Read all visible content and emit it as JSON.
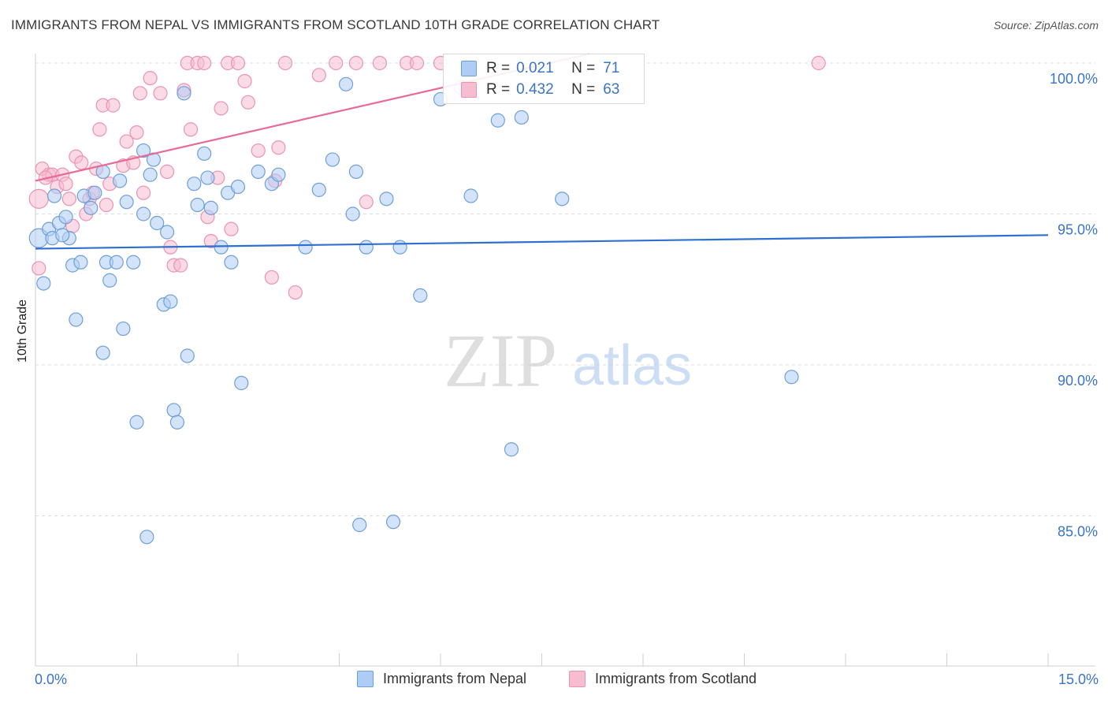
{
  "title": "IMMIGRANTS FROM NEPAL VS IMMIGRANTS FROM SCOTLAND 10TH GRADE CORRELATION CHART",
  "source": "Source: ZipAtlas.com",
  "watermark": {
    "zip": "ZIP",
    "atlas": "atlas"
  },
  "legend": {
    "nepal": {
      "r_label": "R =",
      "r_value": "0.021",
      "n_label": "N =",
      "n_value": "71"
    },
    "scotland": {
      "r_label": "R =",
      "r_value": "0.432",
      "n_label": "N =",
      "n_value": "63"
    }
  },
  "bottom_legend": {
    "nepal": "Immigrants from Nepal",
    "scotland": "Immigrants from Scotland"
  },
  "colors": {
    "nepal_fill": "#aecdf5",
    "nepal_stroke": "#6f9fd8",
    "nepal_line": "#2f6fcf",
    "scotland_fill": "#f6bcd0",
    "scotland_stroke": "#eb93b3",
    "scotland_line": "#e86a96",
    "tick_text": "#3a74c9",
    "grid": "#dcdcdc"
  },
  "chart_data": {
    "type": "scatter",
    "title": "IMMIGRANTS FROM NEPAL VS IMMIGRANTS FROM SCOTLAND 10TH GRADE CORRELATION CHART",
    "xlabel": "",
    "ylabel": "10th Grade",
    "xlim": [
      0,
      15
    ],
    "ylim": [
      80,
      100.8
    ],
    "x_tick_labels": [
      "0.0%",
      "15.0%"
    ],
    "y_ticks": [
      85,
      90,
      95,
      100
    ],
    "y_tick_labels": [
      "85.0%",
      "90.0%",
      "95.0%",
      "100.0%"
    ],
    "grid": true,
    "legend_position": "top-center",
    "series": [
      {
        "name": "Immigrants from Nepal",
        "R": 0.021,
        "N": 71,
        "trend": {
          "x": [
            0,
            15
          ],
          "y": [
            93.85,
            94.3
          ]
        },
        "points": [
          [
            0.05,
            94.2
          ],
          [
            0.12,
            92.7
          ],
          [
            0.2,
            94.5
          ],
          [
            0.25,
            94.2
          ],
          [
            0.28,
            95.6
          ],
          [
            0.35,
            94.7
          ],
          [
            0.45,
            94.9
          ],
          [
            0.5,
            94.2
          ],
          [
            0.55,
            93.3
          ],
          [
            0.6,
            91.5
          ],
          [
            0.67,
            93.4
          ],
          [
            0.72,
            95.6
          ],
          [
            0.82,
            95.2
          ],
          [
            0.88,
            95.7
          ],
          [
            1.0,
            96.4
          ],
          [
            1.0,
            90.4
          ],
          [
            1.05,
            93.4
          ],
          [
            1.1,
            92.8
          ],
          [
            1.2,
            93.4
          ],
          [
            1.25,
            96.1
          ],
          [
            1.3,
            91.2
          ],
          [
            1.35,
            95.4
          ],
          [
            1.45,
            93.4
          ],
          [
            1.5,
            88.1
          ],
          [
            1.6,
            97.1
          ],
          [
            1.65,
            84.3
          ],
          [
            1.7,
            96.3
          ],
          [
            1.75,
            96.8
          ],
          [
            1.8,
            94.7
          ],
          [
            1.9,
            92.0
          ],
          [
            1.95,
            94.4
          ],
          [
            2.0,
            92.1
          ],
          [
            2.05,
            88.5
          ],
          [
            2.1,
            88.1
          ],
          [
            2.2,
            99.0
          ],
          [
            2.25,
            90.3
          ],
          [
            2.35,
            96.0
          ],
          [
            2.4,
            95.3
          ],
          [
            2.5,
            97.0
          ],
          [
            2.55,
            96.2
          ],
          [
            2.6,
            95.2
          ],
          [
            2.75,
            93.9
          ],
          [
            2.85,
            95.7
          ],
          [
            2.9,
            93.4
          ],
          [
            3.0,
            95.9
          ],
          [
            3.05,
            89.4
          ],
          [
            3.3,
            96.4
          ],
          [
            3.5,
            96.0
          ],
          [
            3.6,
            96.3
          ],
          [
            4.0,
            93.9
          ],
          [
            4.2,
            95.8
          ],
          [
            4.4,
            96.8
          ],
          [
            4.6,
            99.3
          ],
          [
            4.7,
            95.0
          ],
          [
            4.75,
            96.4
          ],
          [
            4.8,
            84.7
          ],
          [
            4.9,
            93.9
          ],
          [
            5.2,
            95.5
          ],
          [
            5.3,
            84.8
          ],
          [
            5.4,
            93.9
          ],
          [
            5.7,
            92.3
          ],
          [
            6.0,
            98.8
          ],
          [
            6.45,
            95.6
          ],
          [
            6.85,
            98.1
          ],
          [
            7.05,
            87.2
          ],
          [
            7.2,
            98.2
          ],
          [
            7.8,
            95.5
          ],
          [
            11.2,
            89.6
          ],
          [
            6.3,
            99.2
          ],
          [
            1.6,
            95.0
          ],
          [
            0.4,
            94.3
          ]
        ]
      },
      {
        "name": "Immigrants from Scotland",
        "R": 0.432,
        "N": 63,
        "trend": {
          "x": [
            0,
            8.2
          ],
          "y": [
            96.1,
            100.3
          ]
        },
        "points": [
          [
            0.05,
            95.5
          ],
          [
            0.05,
            93.2
          ],
          [
            0.1,
            96.5
          ],
          [
            0.2,
            96.3
          ],
          [
            0.25,
            96.3
          ],
          [
            0.32,
            95.9
          ],
          [
            0.4,
            96.3
          ],
          [
            0.45,
            96.0
          ],
          [
            0.5,
            95.5
          ],
          [
            0.55,
            94.6
          ],
          [
            0.6,
            96.9
          ],
          [
            0.68,
            96.7
          ],
          [
            0.75,
            95.0
          ],
          [
            0.8,
            95.5
          ],
          [
            0.85,
            95.7
          ],
          [
            0.9,
            96.5
          ],
          [
            0.95,
            97.8
          ],
          [
            1.0,
            98.6
          ],
          [
            1.05,
            95.3
          ],
          [
            1.1,
            96.0
          ],
          [
            1.15,
            98.6
          ],
          [
            1.3,
            96.6
          ],
          [
            1.35,
            97.4
          ],
          [
            1.45,
            96.7
          ],
          [
            1.5,
            97.7
          ],
          [
            1.55,
            99.0
          ],
          [
            1.6,
            95.7
          ],
          [
            1.7,
            99.5
          ],
          [
            1.85,
            99.0
          ],
          [
            1.95,
            96.4
          ],
          [
            2.0,
            93.9
          ],
          [
            2.05,
            93.3
          ],
          [
            2.15,
            93.3
          ],
          [
            2.2,
            99.1
          ],
          [
            2.25,
            100.0
          ],
          [
            2.3,
            97.8
          ],
          [
            2.4,
            100.0
          ],
          [
            2.5,
            100.0
          ],
          [
            2.55,
            94.9
          ],
          [
            2.6,
            94.1
          ],
          [
            2.7,
            96.2
          ],
          [
            2.75,
            98.5
          ],
          [
            2.85,
            100.0
          ],
          [
            2.9,
            94.5
          ],
          [
            3.0,
            100.0
          ],
          [
            3.1,
            99.4
          ],
          [
            3.15,
            98.7
          ],
          [
            3.3,
            97.1
          ],
          [
            3.5,
            92.9
          ],
          [
            3.55,
            96.1
          ],
          [
            3.6,
            97.2
          ],
          [
            3.7,
            100.0
          ],
          [
            3.85,
            92.4
          ],
          [
            4.2,
            99.6
          ],
          [
            4.45,
            100.0
          ],
          [
            4.75,
            100.0
          ],
          [
            4.9,
            95.4
          ],
          [
            5.1,
            100.0
          ],
          [
            5.5,
            100.0
          ],
          [
            5.65,
            100.0
          ],
          [
            6.0,
            100.0
          ],
          [
            11.6,
            100.0
          ],
          [
            0.15,
            96.2
          ]
        ]
      }
    ]
  }
}
